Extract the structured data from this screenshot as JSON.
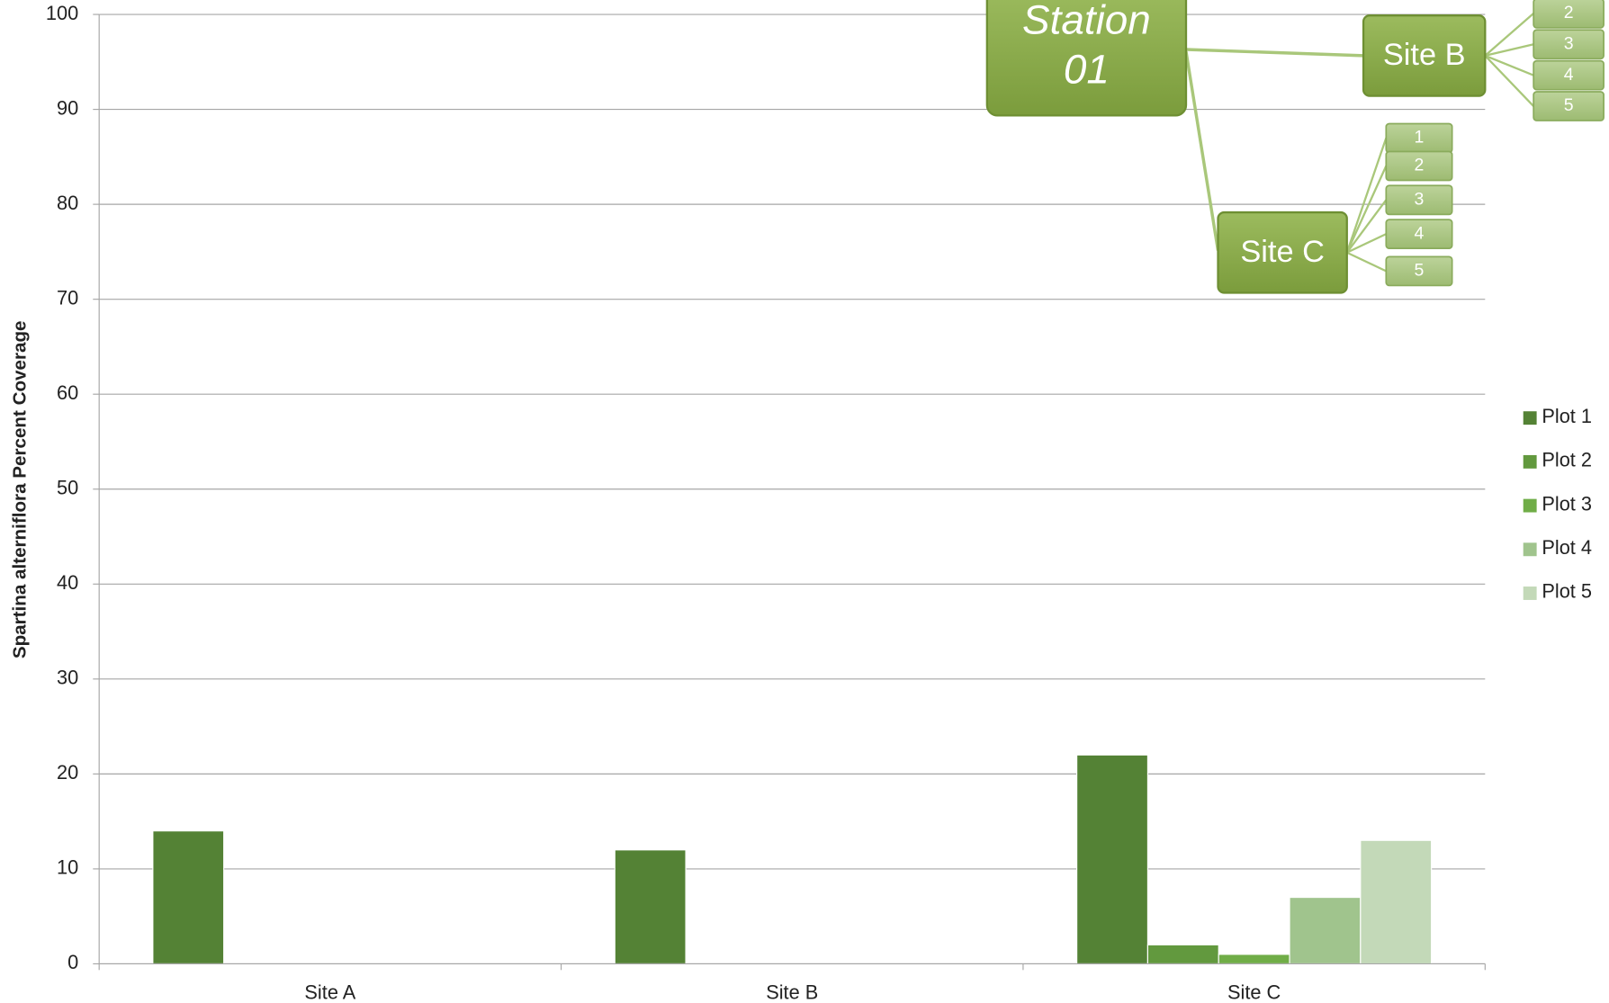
{
  "chart_data": {
    "type": "bar",
    "y_label": "Spartina alterniflora Percent Coverage",
    "categories": [
      "Site A",
      "Site B",
      "Site C"
    ],
    "series": [
      {
        "name": "Plot 1",
        "color": "#548235",
        "values": [
          14,
          12,
          22
        ]
      },
      {
        "name": "Plot 2",
        "color": "#62993e",
        "values": [
          0,
          0,
          2
        ]
      },
      {
        "name": "Plot 3",
        "color": "#70ad47",
        "values": [
          0,
          0,
          1
        ]
      },
      {
        "name": "Plot 4",
        "color": "#a0c48d",
        "values": [
          0,
          0,
          7
        ]
      },
      {
        "name": "Plot 5",
        "color": "#c3d9b8",
        "values": [
          0,
          0,
          13
        ]
      }
    ],
    "ylim": [
      0,
      100
    ],
    "yticks": [
      0,
      10,
      20,
      30,
      40,
      50,
      60,
      70,
      80,
      90,
      100
    ],
    "grid": true,
    "legend": "right"
  },
  "diagram": {
    "root": [
      "Station",
      "01"
    ],
    "branches": [
      {
        "label": "Site B",
        "plots": [
          "2",
          "3",
          "4",
          "5"
        ]
      },
      {
        "label": "Site C",
        "plots": [
          "1",
          "2",
          "3",
          "4",
          "5"
        ]
      }
    ]
  }
}
